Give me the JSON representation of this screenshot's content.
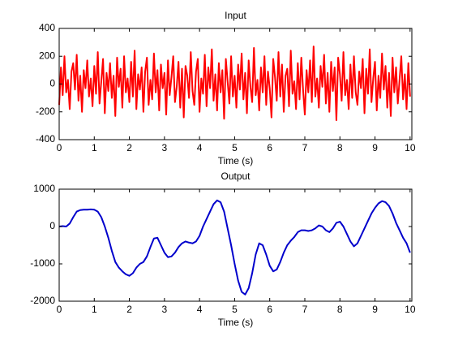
{
  "chart_data": [
    {
      "type": "line",
      "title": "Input",
      "xlabel": "Time (s)",
      "color": "#ff0000",
      "xlim": [
        0,
        10.05
      ],
      "xticks": [
        0,
        1,
        2,
        3,
        4,
        5,
        6,
        7,
        8,
        9,
        10
      ],
      "ylim": [
        -400,
        400
      ],
      "yticks": [
        -400,
        -200,
        0,
        200,
        400
      ],
      "x": [
        0,
        0.05,
        0.1,
        0.15,
        0.2,
        0.25,
        0.3,
        0.35,
        0.4,
        0.45,
        0.5,
        0.55,
        0.6,
        0.65,
        0.7,
        0.75,
        0.8,
        0.85,
        0.9,
        0.95,
        1,
        1.05,
        1.1,
        1.15,
        1.2,
        1.25,
        1.3,
        1.35,
        1.4,
        1.45,
        1.5,
        1.55,
        1.6,
        1.65,
        1.7,
        1.75,
        1.8,
        1.85,
        1.9,
        1.95,
        2,
        2.05,
        2.1,
        2.15,
        2.2,
        2.25,
        2.3,
        2.35,
        2.4,
        2.45,
        2.5,
        2.55,
        2.6,
        2.65,
        2.7,
        2.75,
        2.8,
        2.85,
        2.9,
        2.95,
        3,
        3.05,
        3.1,
        3.15,
        3.2,
        3.25,
        3.3,
        3.35,
        3.4,
        3.45,
        3.5,
        3.55,
        3.6,
        3.65,
        3.7,
        3.75,
        3.8,
        3.85,
        3.9,
        3.95,
        4,
        4.05,
        4.1,
        4.15,
        4.2,
        4.25,
        4.3,
        4.35,
        4.4,
        4.45,
        4.5,
        4.55,
        4.6,
        4.65,
        4.7,
        4.75,
        4.8,
        4.85,
        4.9,
        4.95,
        5,
        5.05,
        5.1,
        5.15,
        5.2,
        5.25,
        5.3,
        5.35,
        5.4,
        5.45,
        5.5,
        5.55,
        5.6,
        5.65,
        5.7,
        5.75,
        5.8,
        5.85,
        5.9,
        5.95,
        6,
        6.05,
        6.1,
        6.15,
        6.2,
        6.25,
        6.3,
        6.35,
        6.4,
        6.45,
        6.5,
        6.55,
        6.6,
        6.65,
        6.7,
        6.75,
        6.8,
        6.85,
        6.9,
        6.95,
        7,
        7.05,
        7.1,
        7.15,
        7.2,
        7.25,
        7.3,
        7.35,
        7.4,
        7.45,
        7.5,
        7.55,
        7.6,
        7.65,
        7.7,
        7.75,
        7.8,
        7.85,
        7.9,
        7.95,
        8,
        8.05,
        8.1,
        8.15,
        8.2,
        8.25,
        8.3,
        8.35,
        8.4,
        8.45,
        8.5,
        8.55,
        8.6,
        8.65,
        8.7,
        8.75,
        8.8,
        8.85,
        8.9,
        8.95,
        9,
        9.05,
        9.1,
        9.15,
        9.2,
        9.25,
        9.3,
        9.35,
        9.4,
        9.45,
        9.5,
        9.55,
        9.6,
        9.65,
        9.7,
        9.75,
        9.8,
        9.85,
        9.9,
        9.95,
        10
      ],
      "values": [
        -150,
        120,
        -80,
        200,
        -60,
        30,
        -180,
        90,
        150,
        -40,
        210,
        -120,
        60,
        -200,
        100,
        -30,
        170,
        -90,
        40,
        -160,
        130,
        -70,
        230,
        -140,
        20,
        180,
        -210,
        80,
        -50,
        150,
        -100,
        60,
        -230,
        190,
        -20,
        110,
        -170,
        200,
        -60,
        40,
        -130,
        160,
        -90,
        240,
        -180,
        70,
        -40,
        120,
        -200,
        90,
        190,
        -150,
        30,
        -110,
        220,
        -60,
        100,
        -190,
        140,
        -30,
        80,
        -220,
        170,
        -80,
        50,
        200,
        -130,
        -20,
        160,
        -170,
        110,
        -240,
        130,
        60,
        -100,
        230,
        -50,
        -150,
        90,
        180,
        -200,
        40,
        -70,
        210,
        -160,
        120,
        -30,
        250,
        -120,
        70,
        -190,
        150,
        -60,
        100,
        -250,
        180,
        20,
        -140,
        200,
        -90,
        60,
        -170,
        140,
        -40,
        220,
        -110,
        80,
        -210,
        170,
        -20,
        -130,
        260,
        -80,
        30,
        -190,
        120,
        -60,
        200,
        -150,
        90,
        -30,
        -240,
        180,
        50,
        -120,
        230,
        -90,
        140,
        -200,
        60,
        110,
        -160,
        240,
        -70,
        20,
        -180,
        150,
        -110,
        190,
        -40,
        -220,
        100,
        -60,
        170,
        -130,
        270,
        -90,
        40,
        -170,
        130,
        -20,
        210,
        -140,
        80,
        -200,
        160,
        -50,
        120,
        -260,
        190,
        70,
        -120,
        230,
        -80,
        30,
        -180,
        140,
        -100,
        200,
        -60,
        -150,
        90,
        -30,
        180,
        -210,
        110,
        -70,
        250,
        -130,
        40,
        160,
        -190,
        60,
        -100,
        220,
        -40,
        130,
        -170,
        80,
        -230,
        190,
        -60,
        120,
        -140,
        30,
        200,
        -110,
        70,
        -180,
        150,
        -90
      ]
    },
    {
      "type": "line",
      "title": "Output",
      "xlabel": "Time (s)",
      "color": "#0000cc",
      "xlim": [
        0,
        10.05
      ],
      "xticks": [
        0,
        1,
        2,
        3,
        4,
        5,
        6,
        7,
        8,
        9,
        10
      ],
      "ylim": [
        -2000,
        1000
      ],
      "yticks": [
        -2000,
        -1000,
        0,
        1000
      ],
      "x": [
        0,
        0.1,
        0.2,
        0.3,
        0.4,
        0.5,
        0.6,
        0.7,
        0.8,
        0.9,
        1,
        1.1,
        1.2,
        1.3,
        1.4,
        1.5,
        1.6,
        1.7,
        1.8,
        1.9,
        2,
        2.1,
        2.2,
        2.3,
        2.4,
        2.5,
        2.6,
        2.7,
        2.8,
        2.9,
        3,
        3.1,
        3.2,
        3.3,
        3.4,
        3.5,
        3.6,
        3.7,
        3.8,
        3.9,
        4,
        4.1,
        4.2,
        4.3,
        4.4,
        4.5,
        4.6,
        4.7,
        4.8,
        4.9,
        5,
        5.1,
        5.2,
        5.3,
        5.4,
        5.5,
        5.6,
        5.7,
        5.8,
        5.9,
        6,
        6.1,
        6.2,
        6.3,
        6.4,
        6.5,
        6.6,
        6.7,
        6.8,
        6.9,
        7,
        7.1,
        7.2,
        7.3,
        7.4,
        7.5,
        7.6,
        7.7,
        7.8,
        7.9,
        8,
        8.1,
        8.2,
        8.3,
        8.4,
        8.5,
        8.6,
        8.7,
        8.8,
        8.9,
        9,
        9.1,
        9.2,
        9.3,
        9.4,
        9.5,
        9.6,
        9.7,
        9.8,
        9.9,
        10
      ],
      "values": [
        0,
        10,
        0,
        80,
        250,
        400,
        440,
        450,
        450,
        460,
        450,
        400,
        250,
        0,
        -300,
        -650,
        -950,
        -1100,
        -1200,
        -1280,
        -1320,
        -1250,
        -1100,
        -1000,
        -950,
        -800,
        -550,
        -320,
        -300,
        -500,
        -700,
        -820,
        -800,
        -700,
        -550,
        -450,
        -400,
        -430,
        -450,
        -400,
        -250,
        0,
        200,
        400,
        600,
        700,
        650,
        400,
        -50,
        -500,
        -1000,
        -1450,
        -1750,
        -1820,
        -1650,
        -1250,
        -750,
        -450,
        -500,
        -750,
        -1050,
        -1200,
        -1150,
        -950,
        -700,
        -500,
        -380,
        -280,
        -150,
        -100,
        -100,
        -120,
        -100,
        -50,
        30,
        0,
        -100,
        -150,
        -50,
        100,
        130,
        0,
        -200,
        -400,
        -530,
        -450,
        -250,
        -50,
        150,
        350,
        500,
        620,
        680,
        650,
        550,
        350,
        100,
        -100,
        -300,
        -450,
        -700
      ]
    }
  ]
}
